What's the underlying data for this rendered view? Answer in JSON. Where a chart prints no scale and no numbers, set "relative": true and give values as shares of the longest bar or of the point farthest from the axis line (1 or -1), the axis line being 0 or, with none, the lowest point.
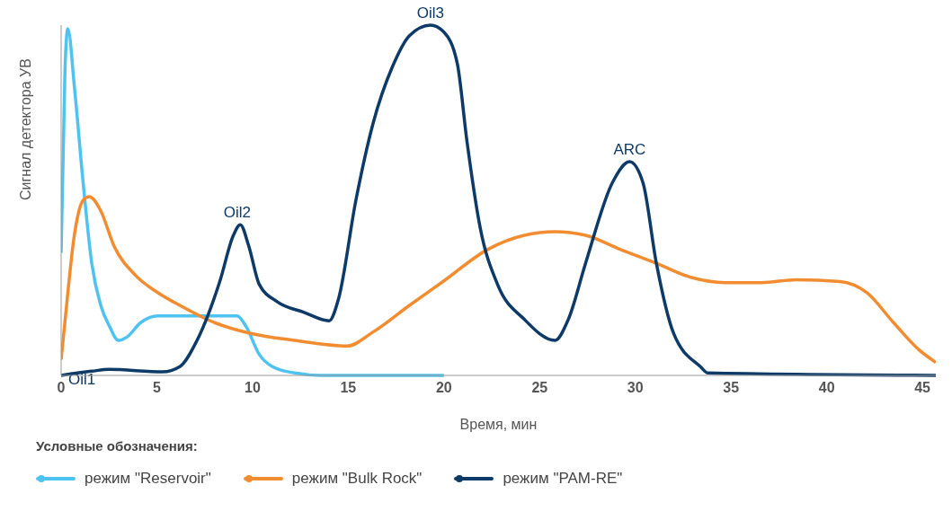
{
  "chart_data": {
    "type": "line",
    "relative": true,
    "xlabel": "Время, мин",
    "ylabel": "Сигнал детектора УВ",
    "legend_title": "Условные обозначения:",
    "legend": "bottom",
    "grid": false,
    "marker": "none",
    "line_style": "solid",
    "xlim": [
      0,
      45.7
    ],
    "xticks": [
      0,
      5,
      10,
      15,
      20,
      25,
      30,
      35,
      40,
      45
    ],
    "series": [
      {
        "name": "режим \"Reservoir\"",
        "color": "#4fc3f0",
        "x": [
          0,
          0.2,
          0.35,
          0.7,
          1.15,
          1.6,
          2.07,
          2.53,
          2.99,
          3.45,
          4.14,
          5.06,
          6.2,
          8.05,
          9.2,
          9.66,
          10.35,
          11.04,
          12.2,
          13.6,
          20
        ],
        "values": [
          0.35,
          0.87,
          0.99,
          0.82,
          0.55,
          0.32,
          0.2,
          0.14,
          0.1,
          0.11,
          0.15,
          0.17,
          0.17,
          0.17,
          0.17,
          0.14,
          0.06,
          0.025,
          0.007,
          0,
          0
        ]
      },
      {
        "name": "режим \"Bulk Rock\"",
        "color": "#f28c30",
        "x": [
          0,
          0.23,
          0.69,
          1.15,
          1.47,
          2.07,
          2.76,
          3.9,
          5.06,
          6.2,
          8.05,
          9.9,
          12.2,
          14.96,
          16.3,
          18.2,
          20,
          22.3,
          24.2,
          25.8,
          27.4,
          29.2,
          31.1,
          32.9,
          34.7,
          36.6,
          38.4,
          40.7,
          42.1,
          43.5,
          44.8,
          45.7
        ],
        "values": [
          0.045,
          0.17,
          0.4,
          0.5,
          0.51,
          0.47,
          0.37,
          0.285,
          0.236,
          0.2,
          0.15,
          0.12,
          0.1,
          0.084,
          0.124,
          0.2,
          0.27,
          0.36,
          0.4,
          0.41,
          0.4,
          0.36,
          0.32,
          0.28,
          0.265,
          0.265,
          0.273,
          0.268,
          0.236,
          0.15,
          0.074,
          0.037
        ]
      },
      {
        "name": "режим \"PAM-RE\"",
        "color": "#0d3a66",
        "x": [
          0,
          1.6,
          2.5,
          5.3,
          6.2,
          7.1,
          8.3,
          9,
          9.36,
          9.8,
          10.35,
          11.3,
          12.7,
          14,
          14.5,
          15.4,
          16.3,
          17.3,
          18.2,
          19.3,
          20,
          20.7,
          21.2,
          21.9,
          22.8,
          24.2,
          25.8,
          26.5,
          27.4,
          28.8,
          29.7,
          30.4,
          31.1,
          32,
          33.4,
          33.8,
          45.7
        ],
        "values": [
          0,
          0.012,
          0.017,
          0.01,
          0.025,
          0.1,
          0.27,
          0.4,
          0.43,
          0.37,
          0.26,
          0.21,
          0.18,
          0.156,
          0.22,
          0.5,
          0.72,
          0.88,
          0.97,
          1,
          0.98,
          0.89,
          0.67,
          0.42,
          0.26,
          0.16,
          0.1,
          0.16,
          0.32,
          0.55,
          0.61,
          0.55,
          0.32,
          0.12,
          0.025,
          0.007,
          0
        ]
      }
    ],
    "annotations": [
      "Oil1",
      {
        "text": "Oil2",
        "x": 9.2,
        "y": 0.43
      },
      {
        "text": "Oil3",
        "x": 19.3,
        "y": 1.0
      },
      {
        "text": "ARC",
        "x": 29.7,
        "y": 0.61
      }
    ]
  }
}
